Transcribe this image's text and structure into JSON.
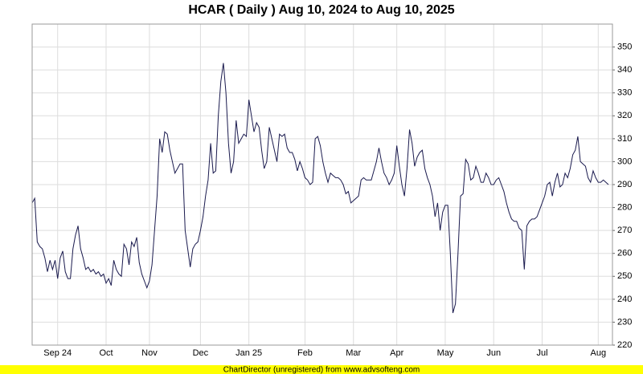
{
  "chart_data": {
    "type": "line",
    "title": "HCAR ( Daily ) Aug 10, 2024 to Aug 10, 2025",
    "footer": "ChartDirector (unregistered) from www.advsofteng.com",
    "ylim": [
      220,
      360
    ],
    "yticks": [
      220,
      230,
      240,
      250,
      260,
      270,
      280,
      290,
      300,
      310,
      320,
      330,
      340,
      350
    ],
    "grid": true,
    "categories": [
      null,
      null,
      null,
      null,
      null,
      null,
      null,
      null,
      null,
      null,
      "Sep 24",
      null,
      null,
      null,
      null,
      null,
      null,
      null,
      null,
      null,
      null,
      null,
      null,
      null,
      null,
      null,
      null,
      null,
      null,
      "Oct",
      null,
      null,
      null,
      null,
      null,
      null,
      null,
      null,
      null,
      null,
      null,
      null,
      null,
      null,
      null,
      null,
      "Nov",
      null,
      null,
      null,
      null,
      null,
      null,
      null,
      null,
      null,
      null,
      null,
      null,
      null,
      null,
      null,
      null,
      null,
      null,
      null,
      "Dec",
      null,
      null,
      null,
      null,
      null,
      null,
      null,
      null,
      null,
      null,
      null,
      null,
      null,
      null,
      null,
      null,
      null,
      null,
      "Jan 25",
      null,
      null,
      null,
      null,
      null,
      null,
      null,
      null,
      null,
      null,
      null,
      null,
      null,
      null,
      null,
      null,
      null,
      null,
      null,
      null,
      null,
      "Feb",
      null,
      null,
      null,
      null,
      null,
      null,
      null,
      null,
      null,
      null,
      null,
      null,
      null,
      null,
      null,
      null,
      null,
      null,
      "Mar",
      null,
      null,
      null,
      null,
      null,
      null,
      null,
      null,
      null,
      null,
      null,
      null,
      null,
      null,
      null,
      null,
      "Apr",
      null,
      null,
      null,
      null,
      null,
      null,
      null,
      null,
      null,
      null,
      null,
      null,
      null,
      null,
      null,
      null,
      null,
      null,
      "May",
      null,
      null,
      null,
      null,
      null,
      null,
      null,
      null,
      null,
      null,
      null,
      null,
      null,
      null,
      null,
      null,
      null,
      null,
      "Jun",
      null,
      null,
      null,
      null,
      null,
      null,
      null,
      null,
      null,
      null,
      null,
      null,
      null,
      null,
      null,
      null,
      null,
      null,
      "Jul",
      null,
      null,
      null,
      null,
      null,
      null,
      null,
      null,
      null,
      null,
      null,
      null,
      null,
      null,
      null,
      null,
      null,
      null,
      null,
      null,
      null,
      "Aug",
      null,
      null,
      null,
      null
    ],
    "series": [
      {
        "color": "#1a1a4e",
        "values": [
          282,
          284,
          265,
          263,
          262,
          258,
          252,
          257,
          253,
          257,
          249,
          258,
          261,
          252,
          249,
          249,
          262,
          268,
          272,
          262,
          258,
          253,
          254,
          252,
          253,
          251,
          252,
          250,
          251,
          247,
          249,
          246,
          257,
          253,
          251,
          250,
          264,
          262,
          255,
          265,
          263,
          267,
          256,
          251,
          248,
          245,
          248,
          255,
          270,
          285,
          310,
          304,
          313,
          312,
          305,
          300,
          295,
          297,
          299,
          299,
          270,
          262,
          254,
          262,
          264,
          265,
          270,
          276,
          285,
          292,
          308,
          295,
          296,
          320,
          335,
          343,
          330,
          308,
          295,
          300,
          318,
          308,
          310,
          312,
          311,
          327,
          320,
          313,
          317,
          315,
          305,
          297,
          300,
          315,
          310,
          305,
          300,
          312,
          311,
          312,
          306,
          304,
          304,
          301,
          296,
          300,
          297,
          293,
          292,
          290,
          291,
          310,
          311,
          307,
          300,
          295,
          291,
          295,
          294,
          293,
          293,
          292,
          290,
          286,
          287,
          282,
          283,
          284,
          285,
          292,
          293,
          292,
          292,
          292,
          296,
          300,
          306,
          300,
          295,
          293,
          290,
          292,
          295,
          307,
          298,
          290,
          285,
          297,
          314,
          308,
          298,
          302,
          304,
          305,
          297,
          293,
          290,
          285,
          276,
          282,
          270,
          278,
          281,
          281,
          260,
          234,
          238,
          260,
          285,
          286,
          301,
          299,
          292,
          293,
          298,
          295,
          291,
          291,
          295,
          293,
          290,
          290,
          292,
          293,
          290,
          287,
          282,
          278,
          275,
          274,
          274,
          271,
          270,
          253,
          272,
          274,
          275,
          275,
          276,
          279,
          282,
          285,
          290,
          291,
          285,
          291,
          295,
          289,
          290,
          295,
          293,
          297,
          303,
          305,
          311,
          300,
          299,
          298,
          293,
          291,
          296,
          293,
          291,
          291,
          292,
          291,
          290
        ]
      }
    ]
  }
}
